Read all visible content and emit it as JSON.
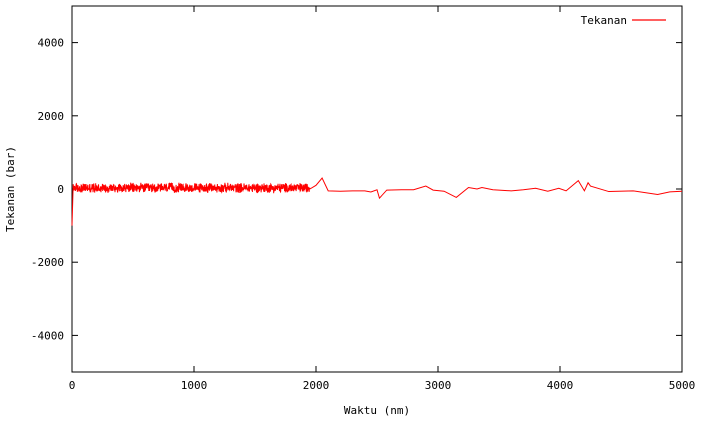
{
  "chart_data": {
    "type": "line",
    "title": "",
    "xlabel": "Waktu (nm)",
    "ylabel": "Tekanan (bar)",
    "xlim": [
      0,
      5000
    ],
    "ylim": [
      -5000,
      5000
    ],
    "xticks": [
      0,
      1000,
      2000,
      3000,
      4000,
      5000
    ],
    "yticks": [
      -4000,
      -2000,
      0,
      2000,
      4000
    ],
    "grid": false,
    "legend": {
      "position": "top-right",
      "entries": [
        "Tekanan"
      ]
    },
    "colors": {
      "series": "#ff0000",
      "axis": "#000000",
      "background": "#ffffff"
    },
    "series": [
      {
        "name": "Tekanan",
        "noise_segment": {
          "x_start": 0,
          "x_end": 1950,
          "mean": 30,
          "amplitude": 150
        },
        "x": [
          0,
          10,
          1950,
          2000,
          2050,
          2100,
          2200,
          2300,
          2400,
          2450,
          2500,
          2520,
          2580,
          2700,
          2800,
          2900,
          2960,
          3050,
          3150,
          3250,
          3320,
          3360,
          3450,
          3600,
          3700,
          3800,
          3900,
          3990,
          4050,
          4150,
          4200,
          4230,
          4250,
          4400,
          4600,
          4800,
          4900,
          5000
        ],
        "y": [
          -1000,
          150,
          0,
          100,
          300,
          -50,
          -60,
          -50,
          -50,
          -80,
          -20,
          -250,
          -30,
          -20,
          -20,
          80,
          -30,
          -60,
          -230,
          40,
          0,
          40,
          -20,
          -50,
          -20,
          20,
          -60,
          20,
          -50,
          230,
          -50,
          170,
          80,
          -70,
          -50,
          -150,
          -80,
          -60
        ]
      }
    ]
  }
}
